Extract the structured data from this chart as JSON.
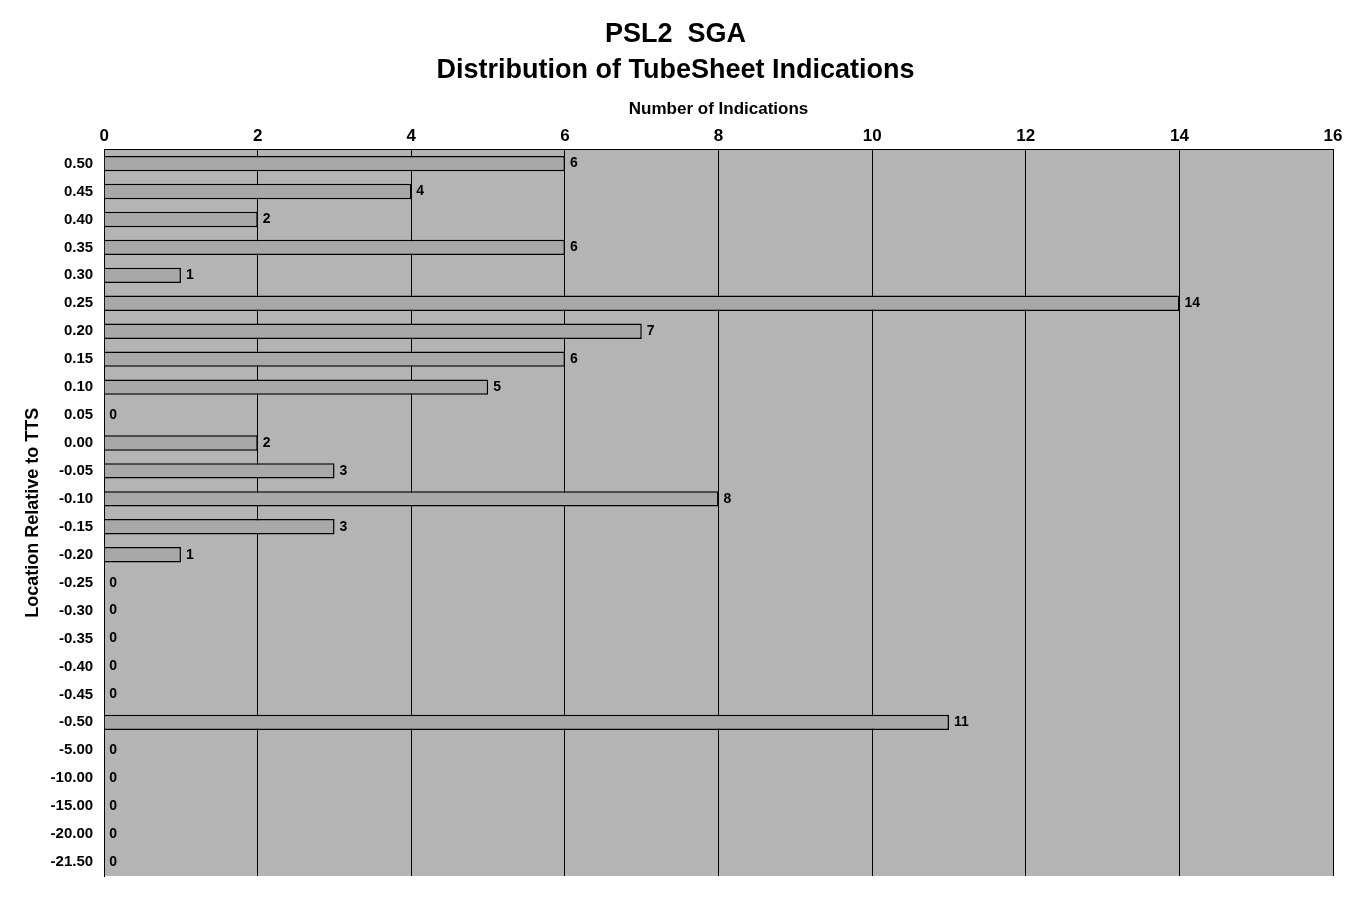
{
  "chart_data": {
    "type": "bar",
    "orientation": "horizontal",
    "title": "PSL2  SGA",
    "subtitle": "Distribution of TubeSheet Indications",
    "xlabel": "Number of Indications",
    "ylabel": "Location Relative to TTS",
    "categories": [
      "0.50",
      "0.45",
      "0.40",
      "0.35",
      "0.30",
      "0.25",
      "0.20",
      "0.15",
      "0.10",
      "0.05",
      "0.00",
      "-0.05",
      "-0.10",
      "-0.15",
      "-0.20",
      "-0.25",
      "-0.30",
      "-0.35",
      "-0.40",
      "-0.45",
      "-0.50",
      "-5.00",
      "-10.00",
      "-15.00",
      "-20.00",
      "-21.50"
    ],
    "values": [
      6,
      4,
      2,
      6,
      1,
      14,
      7,
      6,
      5,
      0,
      2,
      3,
      8,
      3,
      1,
      0,
      0,
      0,
      0,
      0,
      11,
      0,
      0,
      0,
      0,
      0
    ],
    "color": "#a8a8a8",
    "xlim": [
      0,
      16
    ],
    "xticks": [
      0,
      2,
      4,
      6,
      8,
      10,
      12,
      14,
      16
    ],
    "grid": "x",
    "data_labels": true,
    "legend": false
  }
}
